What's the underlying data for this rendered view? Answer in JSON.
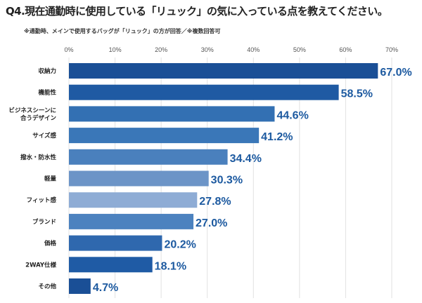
{
  "title": "Q4.現在通勤時に使用している「リュック」の気に入っている点を教えてください。",
  "note": "※通勤時、メインで使用するバッグが「リュック」の方が回答／※複数回答可",
  "chart_data": {
    "type": "bar",
    "orientation": "horizontal",
    "categories": [
      "収納力",
      "機能性",
      "ビジネスシーンに\n合うデザイン",
      "サイズ感",
      "撥水・防水性",
      "軽量",
      "フィット感",
      "ブランド",
      "価格",
      "2WAY仕様",
      "その他"
    ],
    "values": [
      67.0,
      58.5,
      44.6,
      41.2,
      34.4,
      30.3,
      27.8,
      27.0,
      20.2,
      18.1,
      4.7
    ],
    "value_labels": [
      "67.0%",
      "58.5%",
      "44.6%",
      "41.2%",
      "34.4%",
      "30.3%",
      "27.8%",
      "27.0%",
      "20.2%",
      "18.1%",
      "4.7%"
    ],
    "xlim": [
      0,
      70
    ],
    "ticks": [
      "0%",
      "10%",
      "20%",
      "30%",
      "40%",
      "50%",
      "60%",
      "70%"
    ],
    "grid": true,
    "colors": [
      "#1a4f96",
      "#1f5aa3",
      "#3370b3",
      "#3a77b8",
      "#4a80bd",
      "#6c94c7",
      "#8eacd5",
      "#4c82bf",
      "#2f68ae",
      "#1f5ba5",
      "#1a4f96"
    ],
    "label_color": "#1d5aa0"
  }
}
